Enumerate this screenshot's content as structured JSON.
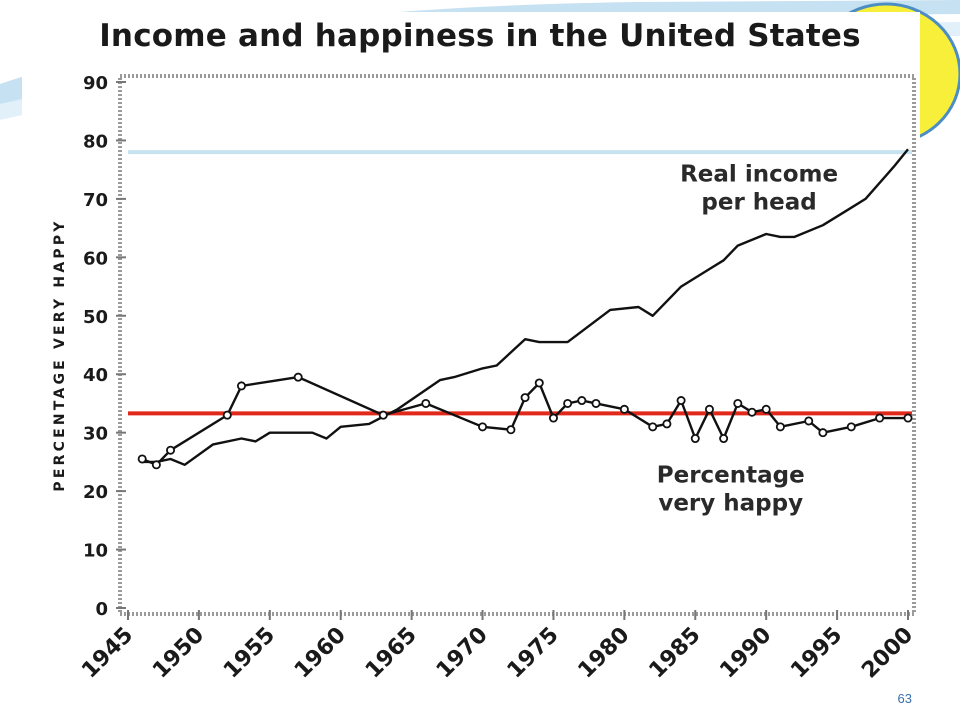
{
  "slide": {
    "number": "63"
  },
  "chart_data": {
    "type": "line",
    "title": "Income and happiness in the United States",
    "ylabel": "PERCENTAGE VERY HAPPY",
    "xlim": [
      1945,
      2000
    ],
    "ylim": [
      0,
      90
    ],
    "x_ticks": [
      "1945",
      "1950",
      "1955",
      "1960",
      "1965",
      "1970",
      "1975",
      "1980",
      "1985",
      "1990",
      "1995",
      "2000"
    ],
    "y_ticks": [
      "0",
      "10",
      "20",
      "30",
      "40",
      "50",
      "60",
      "70",
      "80",
      "90"
    ],
    "series": [
      {
        "name": "Real income per head",
        "color": "#111111",
        "markers": false,
        "x": [
          1946,
          1947,
          1948,
          1949,
          1951,
          1953,
          1954,
          1955,
          1958,
          1959,
          1960,
          1962,
          1964,
          1967,
          1968,
          1970,
          1971,
          1973,
          1974,
          1976,
          1979,
          1981,
          1982,
          1984,
          1986,
          1987,
          1988,
          1990,
          1991,
          1992,
          1994,
          1996,
          1997,
          1999,
          2000
        ],
        "y": [
          25,
          25,
          25.5,
          24.5,
          28,
          29,
          28.5,
          30,
          30,
          29,
          31,
          31.5,
          34,
          39,
          39.5,
          41,
          41.5,
          46,
          45.5,
          45.5,
          51,
          51.5,
          50,
          55,
          58,
          59.5,
          62,
          64,
          63.5,
          63.5,
          65.5,
          68.5,
          70,
          75.5,
          78.5
        ]
      },
      {
        "name": "Percentage very happy",
        "color": "#111111",
        "markers": true,
        "x": [
          1946,
          1947,
          1948,
          1952,
          1953,
          1957,
          1963,
          1966,
          1970,
          1972,
          1973,
          1974,
          1975,
          1976,
          1977,
          1978,
          1980,
          1982,
          1983,
          1984,
          1985,
          1986,
          1987,
          1988,
          1989,
          1990,
          1991,
          1993,
          1994,
          1996,
          1998,
          2000
        ],
        "y": [
          25.5,
          24.5,
          27,
          33,
          38,
          39.5,
          33,
          35,
          31,
          30.5,
          36,
          38.5,
          32.5,
          35,
          35.5,
          35,
          34,
          31,
          31.5,
          35.5,
          29,
          34,
          29,
          35,
          33.5,
          34,
          31,
          32,
          30,
          31,
          32.5,
          32.5
        ]
      }
    ],
    "annotations": [
      {
        "text_lines": [
          "Real income",
          "per head"
        ],
        "x": 1989.5,
        "y": 73
      },
      {
        "text_lines": [
          "Percentage",
          "very happy"
        ],
        "x": 1987.5,
        "y": 21.5
      }
    ],
    "reference_lines": [
      {
        "y": 33.3,
        "color": "#e0281b"
      },
      {
        "y": 78,
        "color": "#c7e3ef"
      }
    ]
  }
}
